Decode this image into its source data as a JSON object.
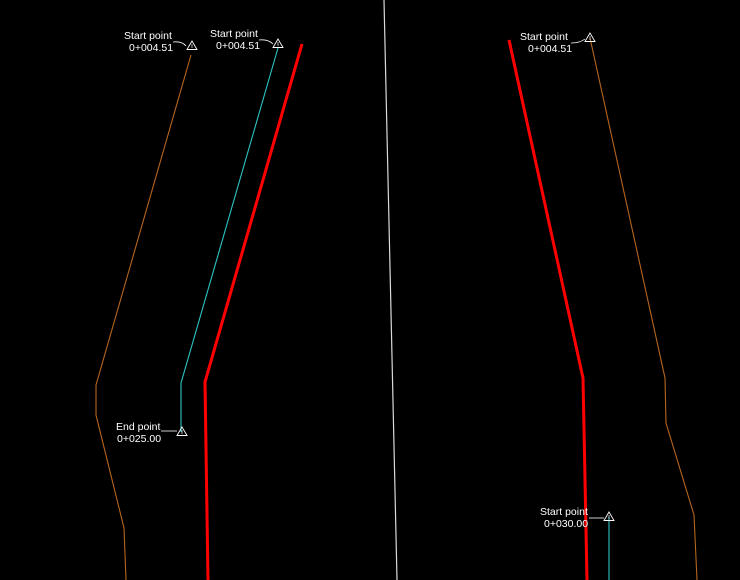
{
  "colors": {
    "background": "#000000",
    "centerline": "#d9d9d9",
    "edge_of_pavement": "#ff0000",
    "offset_line": "#2ec4c4",
    "grading_line": "#b5651d",
    "annotation": "#ffffff"
  },
  "icons": {
    "station_marker": "triangle-marker-icon"
  },
  "annotations": {
    "start_left_outer": {
      "title": "Start point",
      "station": "0+004.51"
    },
    "start_left_inner": {
      "title": "Start point",
      "station": "0+004.51"
    },
    "end_left": {
      "title": "End point",
      "station": "0+025.00"
    },
    "start_right_top": {
      "title": "Start point",
      "station": "0+004.51"
    },
    "start_right_bottom": {
      "title": "Start point",
      "station": "0+030.00"
    }
  }
}
